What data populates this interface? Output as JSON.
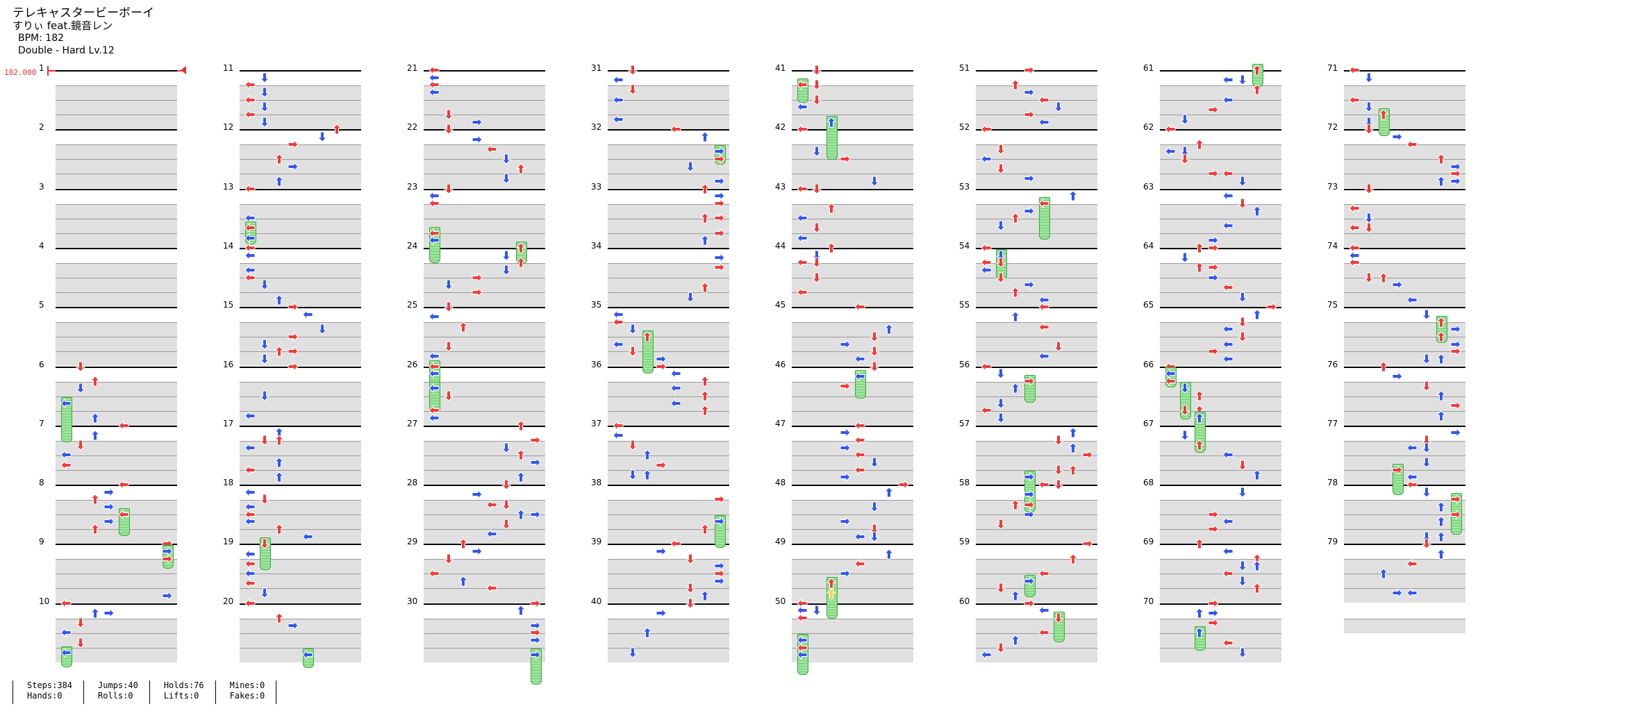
{
  "song": {
    "title": "テレキャスタービーボーイ",
    "artist": "すりぃ feat.鏡音レン",
    "bpm_label": "BPM: 182",
    "mode_label": "Double - Hard  Lv.12"
  },
  "bpm_marker": "182.000",
  "stats": [
    [
      "Steps:384",
      "Hands:0"
    ],
    [
      "Jumps:40",
      "Rolls:0"
    ],
    [
      "Holds:76",
      "Lifts:0"
    ],
    [
      "Mines:0",
      "Fakes:0"
    ]
  ],
  "measures": [
    "1",
    "2",
    "3",
    "4",
    "5",
    "6",
    "7",
    "8",
    "9",
    "10",
    "11",
    "12",
    "13",
    "14",
    "15",
    "16",
    "17",
    "18",
    "19",
    "20",
    "21",
    "22",
    "23",
    "24",
    "25",
    "26",
    "27",
    "28",
    "29",
    "30",
    "31",
    "32",
    "33",
    "34",
    "35",
    "36",
    "37",
    "38",
    "39",
    "40",
    "41",
    "42",
    "43",
    "44",
    "45",
    "46",
    "47",
    "48",
    "49",
    "50",
    "51",
    "52",
    "53",
    "54",
    "55",
    "56",
    "57",
    "58",
    "59",
    "60",
    "61",
    "62",
    "63",
    "64",
    "65",
    "66",
    "67",
    "68",
    "69",
    "70",
    "71",
    "72",
    "73",
    "74",
    "75",
    "76",
    "77",
    "78",
    "79"
  ],
  "colors": {
    "quarter": "#ee3b3b",
    "eighth": "#3355ee",
    "twelfth": "#ffd633",
    "hold": "#7fdc7f",
    "band": "#e0e0e0"
  }
}
